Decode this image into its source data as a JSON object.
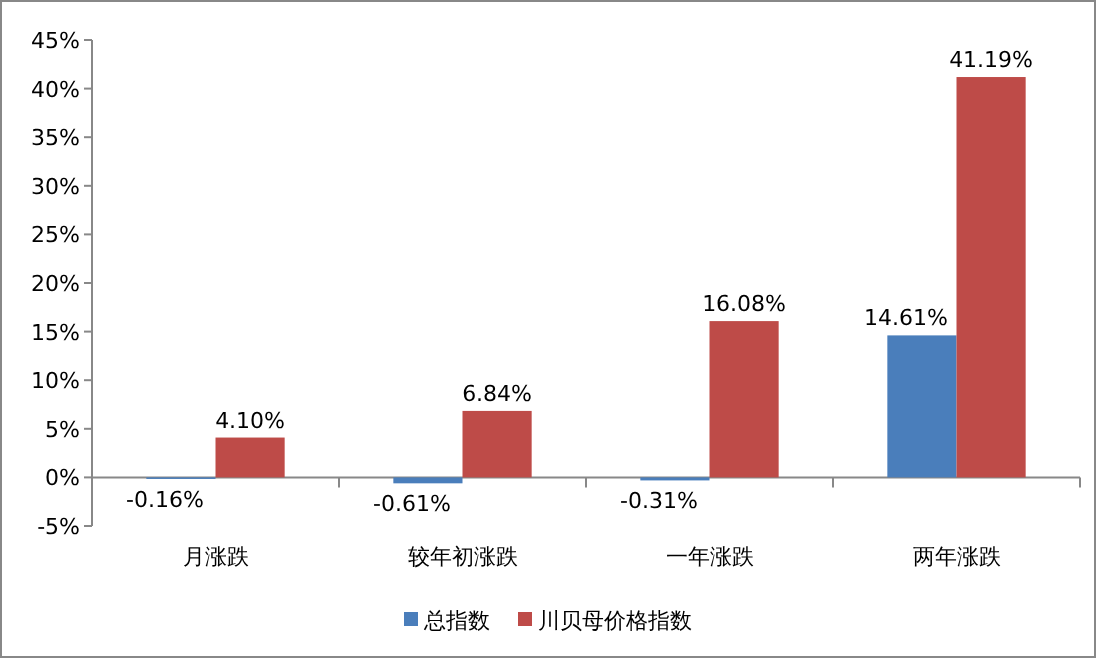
{
  "chart_data": {
    "type": "bar",
    "categories": [
      "月涨跌",
      "较年初涨跌",
      "一年涨跌",
      "两年涨跌"
    ],
    "series": [
      {
        "name": "总指数",
        "color": "#4a7ebb",
        "values": [
          -0.16,
          -0.61,
          -0.31,
          14.61
        ],
        "value_labels": [
          "-0.16%",
          "-0.61%",
          "-0.31%",
          "14.61%"
        ]
      },
      {
        "name": "川贝母价格指数",
        "color": "#be4b48",
        "values": [
          4.1,
          6.84,
          16.08,
          41.19
        ],
        "value_labels": [
          "4.10%",
          "6.84%",
          "16.08%",
          "41.19%"
        ]
      }
    ],
    "ylim": [
      -5,
      45
    ],
    "yticks": [
      {
        "value": -5,
        "label": "-5%"
      },
      {
        "value": 0,
        "label": "0%"
      },
      {
        "value": 5,
        "label": "5%"
      },
      {
        "value": 10,
        "label": "10%"
      },
      {
        "value": 15,
        "label": "15%"
      },
      {
        "value": 20,
        "label": "20%"
      },
      {
        "value": 25,
        "label": "25%"
      },
      {
        "value": 30,
        "label": "30%"
      },
      {
        "value": 35,
        "label": "35%"
      },
      {
        "value": 40,
        "label": "40%"
      },
      {
        "value": 45,
        "label": "45%"
      }
    ],
    "legend": "bottom"
  }
}
